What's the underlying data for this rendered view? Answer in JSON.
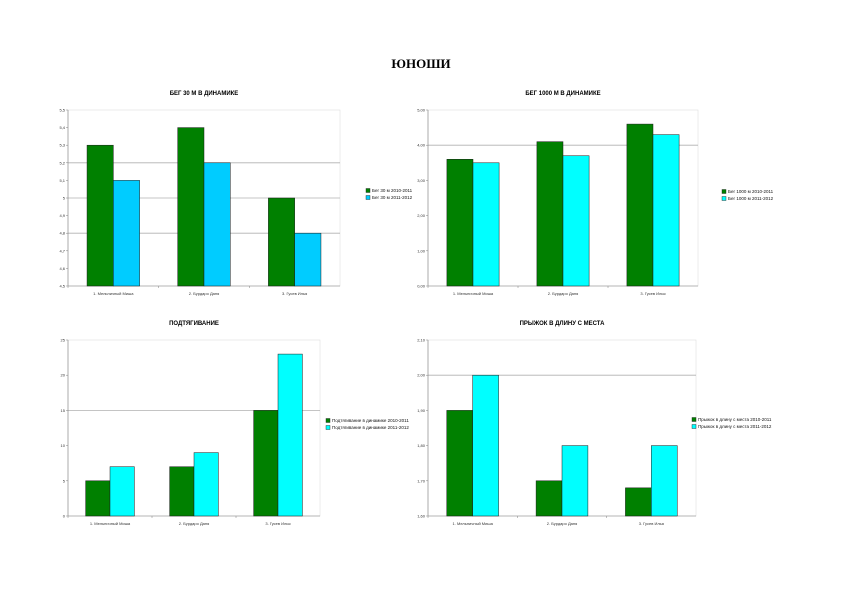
{
  "page": {
    "title": "ЮНОШИ"
  },
  "colors": {
    "dark": "#008000",
    "light_blue": "#00ccff",
    "cyan": "#00ffff",
    "grid": "#b0b0b0",
    "axis": "#808080"
  },
  "chart_data": [
    {
      "type": "bar",
      "title": "БЕГ 30 М В ДИНАМИКЕ",
      "categories": [
        "1. Мельничный Миша",
        "2. Бурдаро Даня",
        "3. Гусев Илья"
      ],
      "series": [
        {
          "name": "Бег 30 м 2010-2011",
          "values": [
            5.3,
            5.4,
            5.0
          ],
          "color": "#008000"
        },
        {
          "name": "Бег 30 м 2011-2012",
          "values": [
            5.1,
            5.2,
            4.8
          ],
          "color": "#00ccff"
        }
      ],
      "ylim": [
        4.5,
        5.5
      ],
      "yticks": [
        4.5,
        4.6,
        4.7,
        4.8,
        4.9,
        5.0,
        5.1,
        5.2,
        5.3,
        5.4,
        5.5
      ],
      "ytick_labels": [
        "4,5",
        "4,6",
        "4,7",
        "4,8",
        "4,9",
        "5",
        "5,1",
        "5,2",
        "5,3",
        "5,4",
        "5,5"
      ],
      "gridlines": [
        4.8,
        5.0,
        5.2
      ],
      "legend": "right"
    },
    {
      "type": "bar",
      "title": "БЕГ 1000 М В ДИНАМИКЕ",
      "categories": [
        "1. Мельничный Миша",
        "2. Бурдаро Даня",
        "3. Гусев Илья"
      ],
      "series": [
        {
          "name": "Бег 1000 м 2010-2011",
          "values": [
            3.6,
            4.1,
            4.6
          ],
          "color": "#008000"
        },
        {
          "name": "Бег 1000 м 2011-2012",
          "values": [
            3.5,
            3.7,
            4.3
          ],
          "color": "#00ffff"
        }
      ],
      "ylim": [
        0,
        5
      ],
      "yticks": [
        0,
        1,
        2,
        3,
        4,
        5
      ],
      "ytick_labels": [
        "0,00",
        "1,00",
        "2,00",
        "3,00",
        "4,00",
        "5,00"
      ],
      "gridlines": [
        4
      ],
      "legend": "right"
    },
    {
      "type": "bar",
      "title": "ПОДТЯГИВАНИЕ",
      "categories": [
        "1. Мельничный Миша",
        "2. Бурдаро Даня",
        "3. Гусев Илья"
      ],
      "series": [
        {
          "name": "Подтягивание в динамике 2010-2011",
          "values": [
            5,
            7,
            15
          ],
          "color": "#008000"
        },
        {
          "name": "Подтягивание в динамике 2011-2012",
          "values": [
            7,
            9,
            23
          ],
          "color": "#00ffff"
        }
      ],
      "ylim": [
        0,
        25
      ],
      "yticks": [
        0,
        5,
        10,
        15,
        20,
        25
      ],
      "ytick_labels": [
        "0",
        "5",
        "10",
        "15",
        "20",
        "25"
      ],
      "gridlines": [
        15
      ],
      "legend": "right"
    },
    {
      "type": "bar",
      "title": "ПРЫЖОК В ДЛИНУ С МЕСТА",
      "categories": [
        "1. Мельничный Миша",
        "2. Бурдаро Даня",
        "3. Гусев Илья"
      ],
      "series": [
        {
          "name": "Прыжок в длину с места 2010-2011",
          "values": [
            1.9,
            1.7,
            1.68
          ],
          "color": "#008000"
        },
        {
          "name": "Прыжок в длину с места 2011-2012",
          "values": [
            2.0,
            1.8,
            1.8
          ],
          "color": "#00ffff"
        }
      ],
      "ylim": [
        1.6,
        2.1
      ],
      "yticks": [
        1.6,
        1.7,
        1.8,
        1.9,
        2.0,
        2.1
      ],
      "ytick_labels": [
        "1,60",
        "1,70",
        "1,80",
        "1,90",
        "2,00",
        "2,10"
      ],
      "gridlines": [
        2.0
      ],
      "legend": "right"
    }
  ]
}
